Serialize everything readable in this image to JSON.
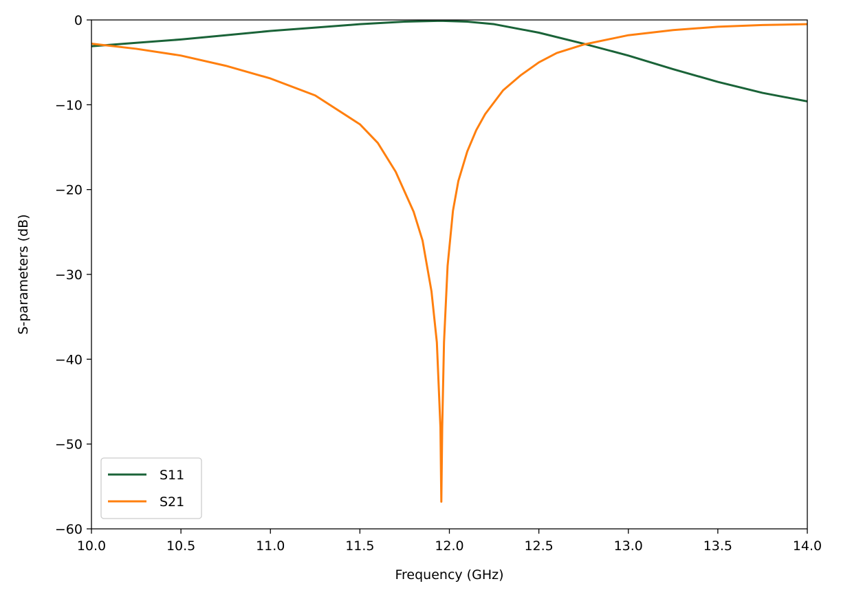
{
  "chart_data": {
    "type": "line",
    "title": "",
    "xlabel": "Frequency (GHz)",
    "ylabel": "S-parameters (dB)",
    "xlim": [
      10.0,
      14.0
    ],
    "ylim": [
      -60,
      0
    ],
    "xticks": [
      10.0,
      10.5,
      11.0,
      11.5,
      12.0,
      12.5,
      13.0,
      13.5,
      14.0
    ],
    "xtick_labels": [
      "10.0",
      "10.5",
      "11.0",
      "11.5",
      "12.0",
      "12.5",
      "13.0",
      "13.5",
      "14.0"
    ],
    "yticks": [
      0,
      -10,
      -20,
      -30,
      -40,
      -50,
      -60
    ],
    "ytick_labels": [
      "0",
      "−10",
      "−20",
      "−30",
      "−40",
      "−50",
      "−60"
    ],
    "grid": false,
    "legend_position": "lower-left",
    "series": [
      {
        "name": "S11",
        "color": "#1a6338",
        "x": [
          10.0,
          10.25,
          10.5,
          10.75,
          11.0,
          11.25,
          11.5,
          11.75,
          11.95,
          12.1,
          12.25,
          12.5,
          12.75,
          13.0,
          13.25,
          13.5,
          13.75,
          14.0
        ],
        "y": [
          -3.1,
          -2.7,
          -2.3,
          -1.8,
          -1.3,
          -0.9,
          -0.5,
          -0.2,
          -0.1,
          -0.2,
          -0.5,
          -1.5,
          -2.8,
          -4.2,
          -5.8,
          -7.3,
          -8.6,
          -9.6
        ]
      },
      {
        "name": "S21",
        "color": "#ff7f0e",
        "x": [
          10.0,
          10.25,
          10.5,
          10.75,
          11.0,
          11.25,
          11.5,
          11.6,
          11.7,
          11.8,
          11.85,
          11.9,
          11.93,
          11.95,
          11.955,
          11.96,
          11.97,
          11.99,
          12.02,
          12.05,
          12.1,
          12.15,
          12.2,
          12.3,
          12.4,
          12.5,
          12.6,
          12.75,
          13.0,
          13.25,
          13.5,
          13.75,
          14.0
        ],
        "y": [
          -2.8,
          -3.4,
          -4.2,
          -5.4,
          -6.9,
          -8.9,
          -12.3,
          -14.5,
          -17.9,
          -22.6,
          -26.0,
          -32.0,
          -38.0,
          -48.0,
          -56.8,
          -48.0,
          -38.0,
          -29.0,
          -22.5,
          -19.0,
          -15.5,
          -13.0,
          -11.1,
          -8.3,
          -6.5,
          -5.0,
          -3.9,
          -2.9,
          -1.8,
          -1.2,
          -0.8,
          -0.6,
          -0.5
        ]
      }
    ]
  }
}
